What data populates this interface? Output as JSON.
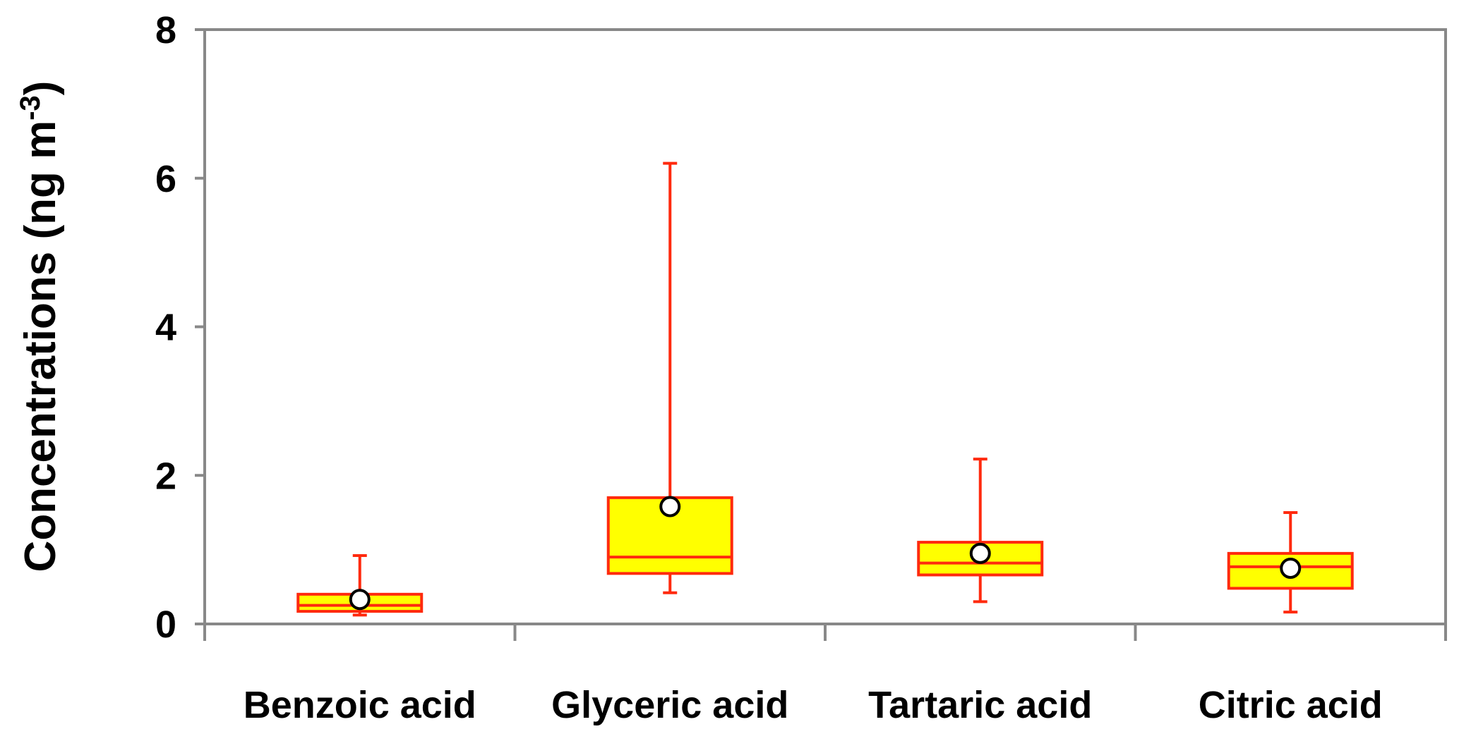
{
  "chart_data": {
    "type": "boxplot",
    "title": "",
    "xlabel": "",
    "ylabel": {
      "main": "Concentrations (ng m",
      "superscript": "-3",
      "close": ")"
    },
    "ylim": [
      0,
      8
    ],
    "yticks": [
      "0",
      "2",
      "4",
      "6",
      "8"
    ],
    "grid": false,
    "colors": {
      "box_fill": "#ffff00",
      "box_stroke": "#ff2a0e",
      "whisker": "#ff2a0e",
      "mean_marker_fill": "#ffffff",
      "mean_marker_stroke": "#000000",
      "axis": "#888888"
    },
    "categories": [
      "Benzoic acid",
      "Glyceric acid",
      "Tartaric acid",
      "Citric acid"
    ],
    "boxes": [
      {
        "name": "Benzoic acid",
        "min": 0.12,
        "q1": 0.17,
        "median": 0.25,
        "q3": 0.4,
        "max": 0.92,
        "mean": 0.33
      },
      {
        "name": "Glyceric acid",
        "min": 0.42,
        "q1": 0.68,
        "median": 0.9,
        "q3": 1.7,
        "max": 6.2,
        "mean": 1.58
      },
      {
        "name": "Tartaric acid",
        "min": 0.3,
        "q1": 0.66,
        "median": 0.82,
        "q3": 1.1,
        "max": 2.22,
        "mean": 0.95
      },
      {
        "name": "Citric acid",
        "min": 0.16,
        "q1": 0.48,
        "median": 0.77,
        "q3": 0.95,
        "max": 1.5,
        "mean": 0.75
      }
    ]
  }
}
